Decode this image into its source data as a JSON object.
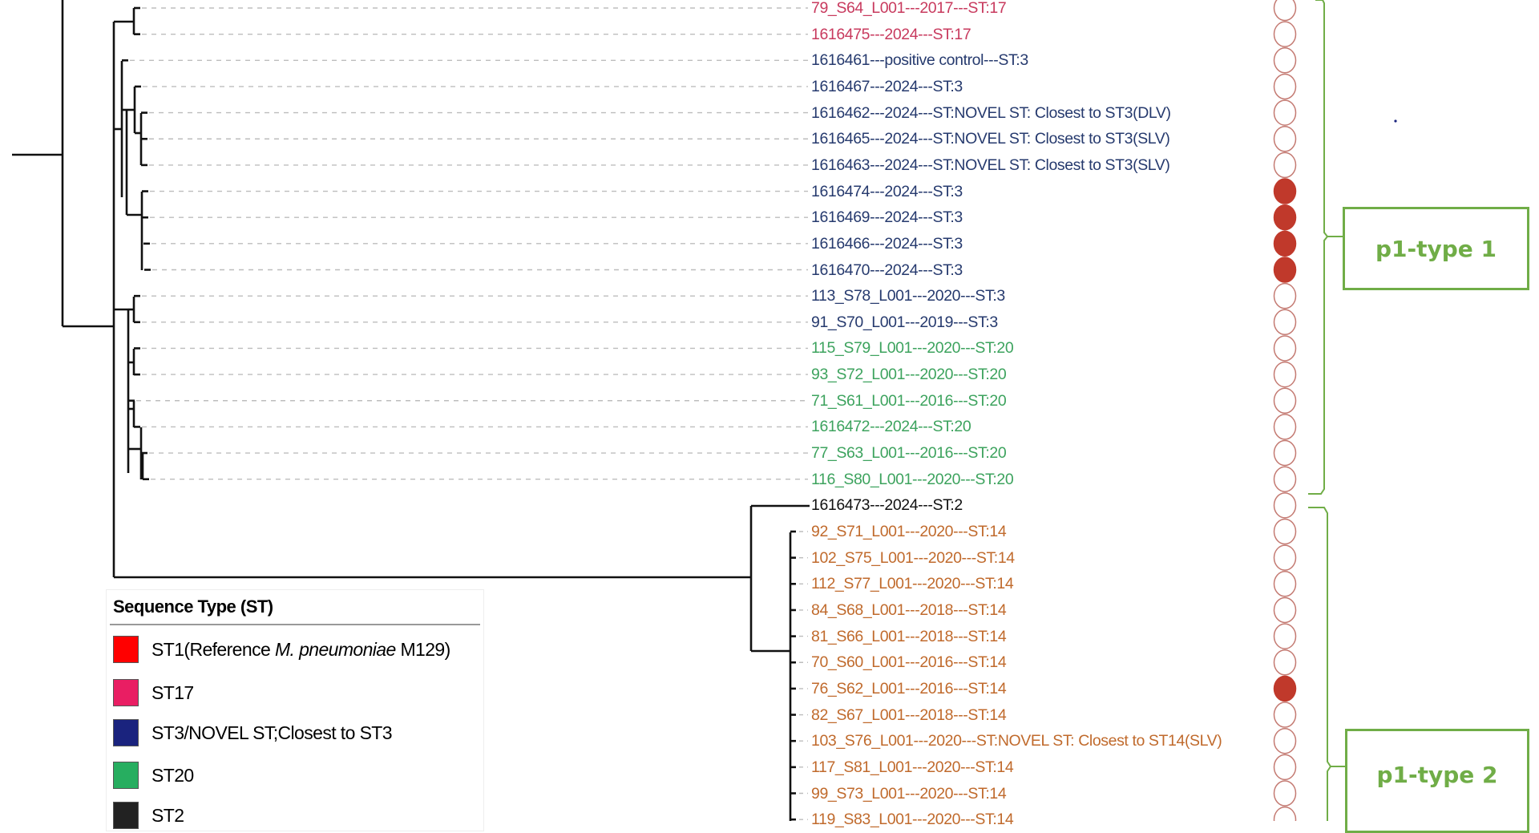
{
  "colors": {
    "ST17": "#c83a5e",
    "ST3": "#263a6e",
    "ST20": "#3da35e",
    "ST2": "#111111",
    "ST14": "#c06a2c",
    "circle_stroke": "#c47a72",
    "circle_fill": "#c0392b",
    "bracket": "#70ad47"
  },
  "tips": [
    {
      "label": "79_S64_L001---2017---ST:17",
      "st": "ST17",
      "marked": false
    },
    {
      "label": "1616475---2024---ST:17",
      "st": "ST17",
      "marked": false
    },
    {
      "label": "1616461---positive control---ST:3",
      "st": "ST3",
      "marked": false
    },
    {
      "label": "1616467---2024---ST:3",
      "st": "ST3",
      "marked": false
    },
    {
      "label": "1616462---2024---ST:NOVEL ST: Closest to ST3(DLV)",
      "st": "ST3",
      "marked": false
    },
    {
      "label": "1616465---2024---ST:NOVEL ST: Closest to ST3(SLV)",
      "st": "ST3",
      "marked": false
    },
    {
      "label": "1616463---2024---ST:NOVEL ST: Closest to ST3(SLV)",
      "st": "ST3",
      "marked": false
    },
    {
      "label": "1616474---2024---ST:3",
      "st": "ST3",
      "marked": true
    },
    {
      "label": "1616469---2024---ST:3",
      "st": "ST3",
      "marked": true
    },
    {
      "label": "1616466---2024---ST:3",
      "st": "ST3",
      "marked": true
    },
    {
      "label": "1616470---2024---ST:3",
      "st": "ST3",
      "marked": true
    },
    {
      "label": "113_S78_L001---2020---ST:3",
      "st": "ST3",
      "marked": false
    },
    {
      "label": "91_S70_L001---2019---ST:3",
      "st": "ST3",
      "marked": false
    },
    {
      "label": "115_S79_L001---2020---ST:20",
      "st": "ST20",
      "marked": false
    },
    {
      "label": "93_S72_L001---2020---ST:20",
      "st": "ST20",
      "marked": false
    },
    {
      "label": "71_S61_L001---2016---ST:20",
      "st": "ST20",
      "marked": false
    },
    {
      "label": "1616472---2024---ST:20",
      "st": "ST20",
      "marked": false
    },
    {
      "label": "77_S63_L001---2016---ST:20",
      "st": "ST20",
      "marked": false
    },
    {
      "label": "116_S80_L001---2020---ST:20",
      "st": "ST20",
      "marked": false
    },
    {
      "label": "1616473---2024---ST:2",
      "st": "ST2",
      "marked": false
    },
    {
      "label": "92_S71_L001---2020---ST:14",
      "st": "ST14",
      "marked": false
    },
    {
      "label": "102_S75_L001---2020---ST:14",
      "st": "ST14",
      "marked": false
    },
    {
      "label": "112_S77_L001---2020---ST:14",
      "st": "ST14",
      "marked": false
    },
    {
      "label": "84_S68_L001---2018---ST:14",
      "st": "ST14",
      "marked": false
    },
    {
      "label": "81_S66_L001---2018---ST:14",
      "st": "ST14",
      "marked": false
    },
    {
      "label": "70_S60_L001---2016---ST:14",
      "st": "ST14",
      "marked": false
    },
    {
      "label": "76_S62_L001---2016---ST:14",
      "st": "ST14",
      "marked": true
    },
    {
      "label": "82_S67_L001---2018---ST:14",
      "st": "ST14",
      "marked": false
    },
    {
      "label": "103_S76_L001---2020---ST:NOVEL ST: Closest to ST14(SLV)",
      "st": "ST14",
      "marked": false
    },
    {
      "label": "117_S81_L001---2020---ST:14",
      "st": "ST14",
      "marked": false
    },
    {
      "label": "99_S73_L001---2020---ST:14",
      "st": "ST14",
      "marked": false
    },
    {
      "label": "119_S83_L001---2020---ST:14",
      "st": "ST14",
      "marked": false
    }
  ],
  "groups": {
    "p1_type_1": "p1-type 1",
    "p1_type_2": "p1-type 2"
  },
  "legend": {
    "title": "Sequence Type (ST)",
    "items": [
      {
        "prefix": "ST1(Reference ",
        "italic": "M. pneumoniae",
        "suffix": " M129)",
        "color": "#ff0000"
      },
      {
        "prefix": "ST17",
        "italic": "",
        "suffix": "",
        "color": "#e91e63"
      },
      {
        "prefix": "ST3/NOVEL ST;Closest to ST3",
        "italic": "",
        "suffix": "",
        "color": "#1a237e"
      },
      {
        "prefix": "ST20",
        "italic": "",
        "suffix": "",
        "color": "#27ae60"
      },
      {
        "prefix": "ST2",
        "italic": "",
        "suffix": "",
        "color": "#222222"
      }
    ]
  }
}
